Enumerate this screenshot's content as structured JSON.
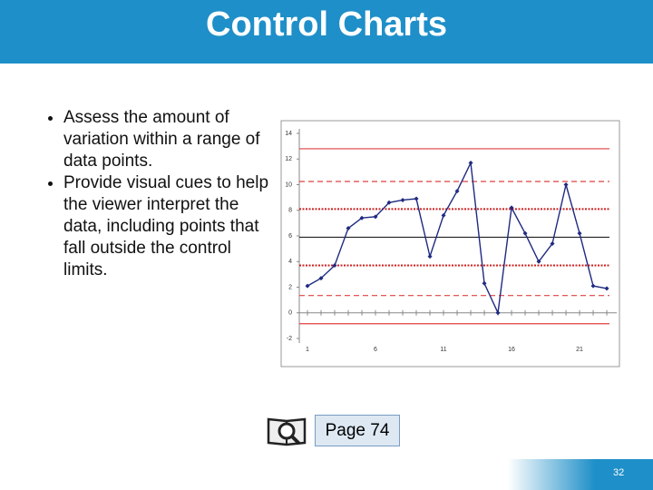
{
  "header": {
    "title": "Control Charts"
  },
  "bullets": [
    "Assess the amount of variation within a range of data points.",
    "Provide visual cues to help the viewer interpret the data, including points that fall outside the control limits."
  ],
  "page_ref": "Page 74",
  "slide_number": "32",
  "chart_data": {
    "type": "line",
    "x": [
      1,
      2,
      3,
      4,
      5,
      6,
      7,
      8,
      9,
      10,
      11,
      12,
      13,
      14,
      15,
      16,
      17,
      18,
      19,
      20,
      21,
      22,
      23
    ],
    "series": [
      {
        "color": "#1f2a80",
        "values": [
          2.1,
          2.7,
          3.7,
          6.6,
          7.4,
          7.5,
          8.6,
          8.8,
          8.9,
          4.4,
          7.6,
          9.5,
          11.7,
          2.3,
          0,
          8.2,
          6.2,
          4.0,
          5.4,
          10.0,
          6.2,
          2.1,
          1.9
        ]
      }
    ],
    "reference_lines": [
      {
        "value": 12.8,
        "color": "#e04040",
        "style": "solid"
      },
      {
        "value": 10.25,
        "color": "#e04040",
        "style": "dashed"
      },
      {
        "value": 8.1,
        "color": "#cc2020",
        "style": "dotted"
      },
      {
        "value": 5.9,
        "color": "#222222",
        "style": "solid"
      },
      {
        "value": 3.7,
        "color": "#cc2020",
        "style": "dotted"
      },
      {
        "value": 1.35,
        "color": "#e04040",
        "style": "dashed"
      },
      {
        "value": -0.85,
        "color": "#e04040",
        "style": "solid"
      }
    ],
    "xlim": [
      0.4,
      23.73
    ],
    "xticks": [
      1,
      6,
      11,
      16,
      21
    ],
    "ylim": [
      -2,
      14
    ],
    "yticks": [
      14,
      12,
      10,
      8,
      6,
      4,
      2,
      0,
      -2
    ]
  }
}
